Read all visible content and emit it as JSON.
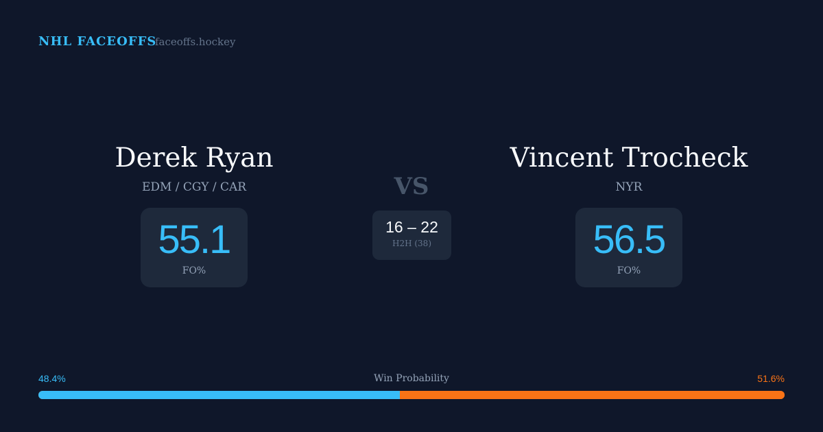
{
  "header": {
    "brand": "NHL FACEOFFS",
    "site": "faceoffs.hockey"
  },
  "left": {
    "name": "Derek Ryan",
    "teams": "EDM / CGY / CAR",
    "fo_pct": "55.1",
    "fo_label": "FO%"
  },
  "right": {
    "name": "Vincent Trocheck",
    "teams": "NYR",
    "fo_pct": "56.5",
    "fo_label": "FO%"
  },
  "center": {
    "vs": "VS",
    "record": "16 – 22",
    "h2h": "H2H (38)"
  },
  "win_probability": {
    "label": "Win Probability",
    "left_pct": "48.4%",
    "right_pct": "51.6%",
    "left_value": 48.4,
    "right_value": 51.6
  },
  "colors": {
    "left": "#38bdf8",
    "right": "#f97316",
    "background": "#0f172a",
    "card": "#1e293b"
  }
}
